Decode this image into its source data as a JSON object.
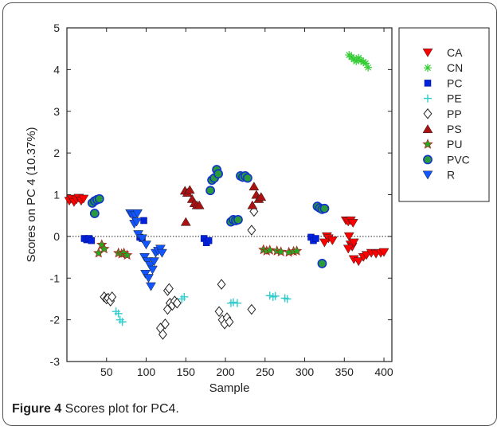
{
  "caption": {
    "label": "Figure 4",
    "text": " Scores plot for PC4."
  },
  "chart_data": {
    "type": "scatter",
    "title": "",
    "xlabel": "Sample",
    "ylabel": "Scores on PC 4 (10.37%)",
    "xlim": [
      0,
      410
    ],
    "ylim": [
      -3,
      5
    ],
    "xticks": [
      50,
      100,
      150,
      200,
      250,
      300,
      350,
      400
    ],
    "yticks": [
      -3,
      -2,
      -1,
      0,
      1,
      2,
      3,
      4,
      5
    ],
    "reference_line": {
      "y": 0,
      "style": "dotted"
    },
    "legend_position": "top-right",
    "series": [
      {
        "name": "CA",
        "marker": "triangle-down",
        "color": "#ff0000",
        "points": [
          [
            3,
            0.85
          ],
          [
            6,
            0.9
          ],
          [
            9,
            0.82
          ],
          [
            12,
            0.88
          ],
          [
            15,
            0.92
          ],
          [
            18,
            0.85
          ],
          [
            21,
            0.9
          ],
          [
            352,
            0.38
          ],
          [
            355,
            0.35
          ],
          [
            358,
            0.38
          ],
          [
            361,
            0.32
          ],
          [
            356,
            0.0
          ],
          [
            358,
            -0.2
          ],
          [
            360,
            -0.25
          ],
          [
            355,
            -0.3
          ],
          [
            362,
            -0.15
          ],
          [
            328,
            0.0
          ],
          [
            330,
            -0.05
          ],
          [
            325,
            -0.15
          ],
          [
            335,
            -0.1
          ],
          [
            362,
            -0.55
          ],
          [
            368,
            -0.6
          ],
          [
            374,
            -0.5
          ],
          [
            378,
            -0.45
          ],
          [
            384,
            -0.4
          ],
          [
            390,
            -0.42
          ],
          [
            396,
            -0.4
          ],
          [
            400,
            -0.38
          ]
        ]
      },
      {
        "name": "CN",
        "marker": "asterisk",
        "color": "#33cc33",
        "points": [
          [
            356,
            4.35
          ],
          [
            359,
            4.3
          ],
          [
            362,
            4.25
          ],
          [
            365,
            4.2
          ],
          [
            368,
            4.28
          ],
          [
            371,
            4.22
          ],
          [
            374,
            4.18
          ],
          [
            377,
            4.15
          ],
          [
            380,
            4.05
          ]
        ]
      },
      {
        "name": "PC",
        "marker": "square",
        "color": "#0022dd",
        "points": [
          [
            22,
            -0.05
          ],
          [
            25,
            -0.08
          ],
          [
            28,
            -0.05
          ],
          [
            31,
            -0.1
          ],
          [
            97,
            0.38
          ],
          [
            92,
            -0.02
          ],
          [
            95,
            -0.05
          ],
          [
            173,
            -0.05
          ],
          [
            176,
            -0.15
          ],
          [
            179,
            -0.1
          ],
          [
            308,
            -0.02
          ],
          [
            311,
            -0.1
          ],
          [
            314,
            -0.05
          ]
        ]
      },
      {
        "name": "PE",
        "marker": "plus",
        "color": "#33cccc",
        "points": [
          [
            62,
            -1.8
          ],
          [
            65,
            -1.85
          ],
          [
            67,
            -2.0
          ],
          [
            70,
            -2.05
          ],
          [
            145,
            -1.5
          ],
          [
            148,
            -1.45
          ],
          [
            207,
            -1.6
          ],
          [
            210,
            -1.58
          ],
          [
            215,
            -1.6
          ],
          [
            256,
            -1.42
          ],
          [
            260,
            -1.45
          ],
          [
            263,
            -1.43
          ],
          [
            275,
            -1.48
          ],
          [
            278,
            -1.5
          ]
        ]
      },
      {
        "name": "PP",
        "marker": "diamond-open",
        "color": "#222222",
        "points": [
          [
            47,
            -1.45
          ],
          [
            50,
            -1.5
          ],
          [
            52,
            -1.48
          ],
          [
            55,
            -1.55
          ],
          [
            57,
            -1.45
          ],
          [
            118,
            -2.2
          ],
          [
            121,
            -2.35
          ],
          [
            124,
            -2.1
          ],
          [
            127,
            -1.75
          ],
          [
            130,
            -1.6
          ],
          [
            133,
            -1.65
          ],
          [
            136,
            -1.55
          ],
          [
            139,
            -1.6
          ],
          [
            127,
            -1.3
          ],
          [
            129,
            -1.25
          ],
          [
            195,
            -1.15
          ],
          [
            192,
            -1.8
          ],
          [
            196,
            -2.0
          ],
          [
            199,
            -2.1
          ],
          [
            202,
            -1.95
          ],
          [
            205,
            -2.05
          ],
          [
            233,
            0.15
          ],
          [
            236,
            0.6
          ],
          [
            233,
            -1.75
          ]
        ]
      },
      {
        "name": "PS",
        "marker": "triangle-up",
        "color": "#aa1111",
        "points": [
          [
            149,
            1.1
          ],
          [
            152,
            1.05
          ],
          [
            155,
            1.12
          ],
          [
            158,
            0.9
          ],
          [
            161,
            0.8
          ],
          [
            164,
            0.75
          ],
          [
            167,
            0.75
          ],
          [
            150,
            0.35
          ],
          [
            236,
            1.2
          ],
          [
            239,
            1.0
          ],
          [
            242,
            0.9
          ],
          [
            245,
            0.95
          ],
          [
            234,
            0.75
          ]
        ]
      },
      {
        "name": "PU",
        "marker": "star",
        "color": "#22aa22",
        "points": [
          [
            40,
            -0.4
          ],
          [
            44,
            -0.2
          ],
          [
            47,
            -0.3
          ],
          [
            65,
            -0.4
          ],
          [
            69,
            -0.42
          ],
          [
            72,
            -0.4
          ],
          [
            76,
            -0.45
          ],
          [
            248,
            -0.32
          ],
          [
            252,
            -0.35
          ],
          [
            256,
            -0.33
          ],
          [
            265,
            -0.35
          ],
          [
            270,
            -0.37
          ],
          [
            280,
            -0.38
          ],
          [
            286,
            -0.36
          ],
          [
            290,
            -0.35
          ]
        ]
      },
      {
        "name": "PVC",
        "marker": "circle",
        "color": "#2a9a3a",
        "points": [
          [
            32,
            0.8
          ],
          [
            35,
            0.85
          ],
          [
            38,
            0.88
          ],
          [
            41,
            0.9
          ],
          [
            35,
            0.55
          ],
          [
            183,
            1.35
          ],
          [
            186,
            1.4
          ],
          [
            189,
            1.6
          ],
          [
            191,
            1.5
          ],
          [
            181,
            1.1
          ],
          [
            207,
            0.35
          ],
          [
            210,
            0.4
          ],
          [
            213,
            0.38
          ],
          [
            216,
            0.4
          ],
          [
            219,
            1.45
          ],
          [
            222,
            1.42
          ],
          [
            225,
            1.45
          ],
          [
            228,
            1.4
          ],
          [
            316,
            0.72
          ],
          [
            319,
            0.68
          ],
          [
            322,
            0.65
          ],
          [
            325,
            0.67
          ],
          [
            322,
            -0.65
          ]
        ]
      },
      {
        "name": "R",
        "marker": "triangle-down",
        "color": "#1155ff",
        "points": [
          [
            80,
            0.55
          ],
          [
            83,
            0.5
          ],
          [
            86,
            0.5
          ],
          [
            89,
            0.55
          ],
          [
            85,
            0.3
          ],
          [
            88,
            0.35
          ],
          [
            90,
            0.05
          ],
          [
            95,
            -0.05
          ],
          [
            100,
            -0.2
          ],
          [
            98,
            -0.5
          ],
          [
            102,
            -0.6
          ],
          [
            105,
            -0.7
          ],
          [
            99,
            -0.9
          ],
          [
            103,
            -1.0
          ],
          [
            106,
            -1.2
          ],
          [
            108,
            -0.8
          ],
          [
            110,
            -0.6
          ],
          [
            112,
            -0.4
          ],
          [
            115,
            -0.35
          ],
          [
            118,
            -0.3
          ],
          [
            120,
            -0.4
          ]
        ]
      }
    ]
  }
}
